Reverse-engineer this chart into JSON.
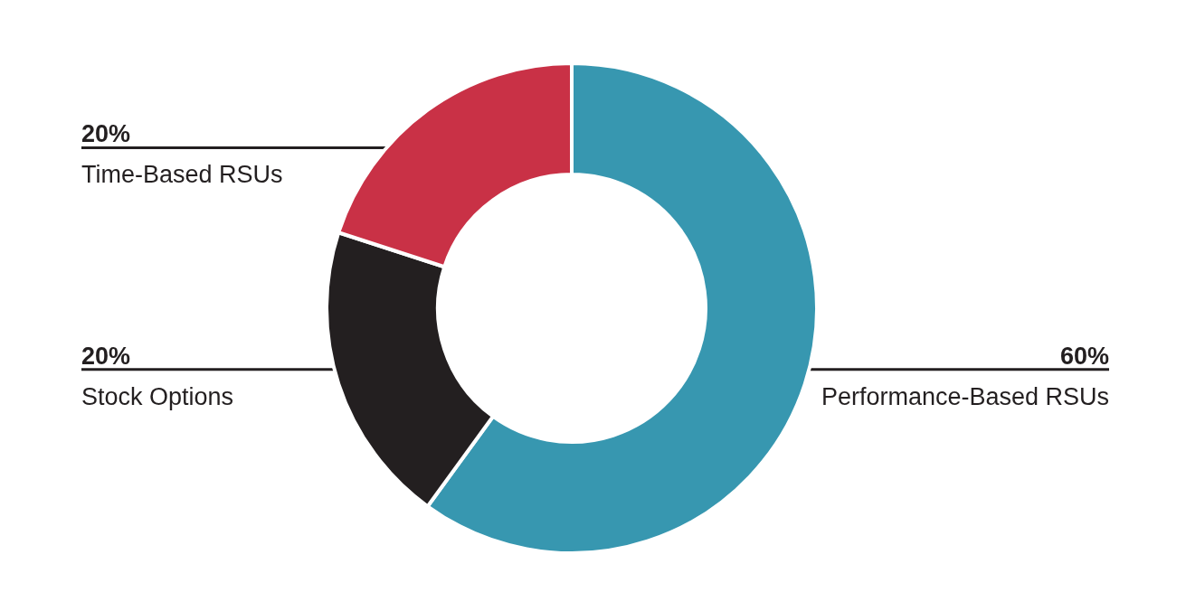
{
  "chart_data": {
    "type": "donut",
    "categories": [
      "Performance-Based RSUs",
      "Stock Options",
      "Time-Based RSUs"
    ],
    "values": [
      60,
      20,
      20
    ],
    "colors": [
      "#3797b0",
      "#231f20",
      "#c93146"
    ],
    "value_labels": [
      "60%",
      "20%",
      "20%"
    ],
    "legend": false
  }
}
